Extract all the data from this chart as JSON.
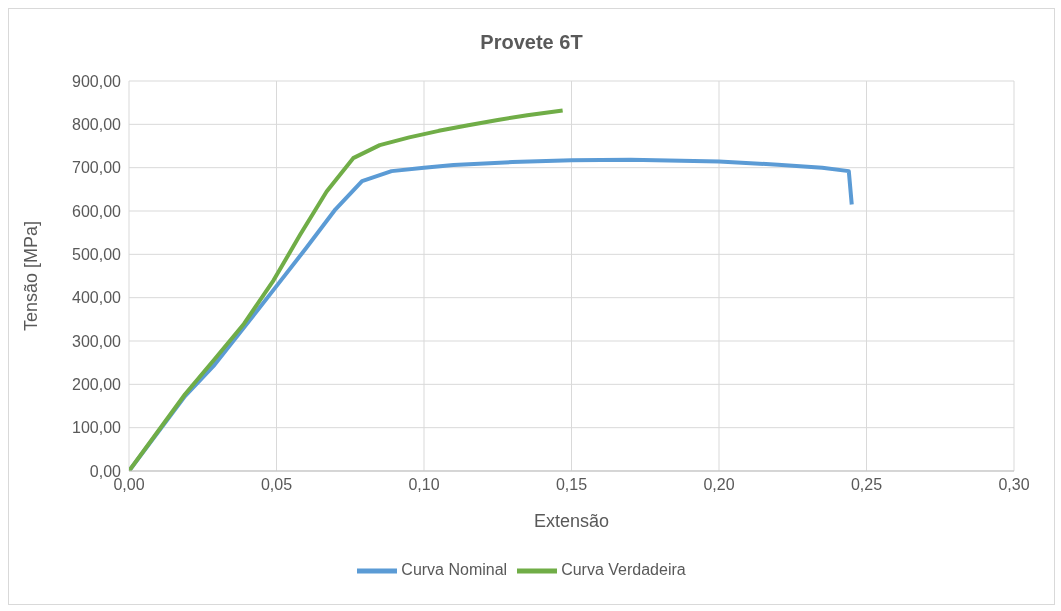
{
  "chart_data": {
    "type": "line",
    "title": "Provete 6T",
    "xlabel": "Extensão",
    "ylabel": "Tensão [MPa]",
    "xlim": [
      0,
      0.3
    ],
    "xticks": [
      {
        "value": 0,
        "label": "0,00"
      },
      {
        "value": 0.05,
        "label": "0,05"
      },
      {
        "value": 0.1,
        "label": "0,10"
      },
      {
        "value": 0.15,
        "label": "0,15"
      },
      {
        "value": 0.2,
        "label": "0,20"
      },
      {
        "value": 0.25,
        "label": "0,25"
      },
      {
        "value": 0.3,
        "label": "0,30"
      }
    ],
    "ylim": [
      0,
      900
    ],
    "yticks": [
      {
        "value": 0,
        "label": "0,00"
      },
      {
        "value": 100,
        "label": "100,00"
      },
      {
        "value": 200,
        "label": "200,00"
      },
      {
        "value": 300,
        "label": "300,00"
      },
      {
        "value": 400,
        "label": "400,00"
      },
      {
        "value": 500,
        "label": "500,00"
      },
      {
        "value": 600,
        "label": "600,00"
      },
      {
        "value": 700,
        "label": "700,00"
      },
      {
        "value": 800,
        "label": "800,00"
      },
      {
        "value": 900,
        "label": "900,00"
      }
    ],
    "grid": true,
    "legend": "bottom",
    "marker": "none",
    "line_style": "solid",
    "series": [
      {
        "name": "Curva Nominal",
        "color": "#5b9bd5",
        "x": [
          0,
          0.019,
          0.029,
          0.049,
          0.06,
          0.07,
          0.079,
          0.089,
          0.1,
          0.11,
          0.13,
          0.15,
          0.17,
          0.2,
          0.22,
          0.235,
          0.244,
          0.245
        ],
        "values": [
          0,
          173,
          245,
          418,
          514,
          604,
          669,
          692,
          700,
          706,
          713,
          717,
          718,
          714,
          707,
          700,
          692,
          615
        ]
      },
      {
        "name": "Curva Verdadeira",
        "color": "#70ad47",
        "x": [
          0,
          0.019,
          0.029,
          0.039,
          0.049,
          0.058,
          0.067,
          0.076,
          0.085,
          0.095,
          0.105,
          0.115,
          0.125,
          0.135,
          0.147
        ],
        "values": [
          0,
          177,
          258,
          340,
          440,
          545,
          645,
          722,
          752,
          770,
          785,
          798,
          810,
          821,
          832
        ]
      }
    ]
  }
}
